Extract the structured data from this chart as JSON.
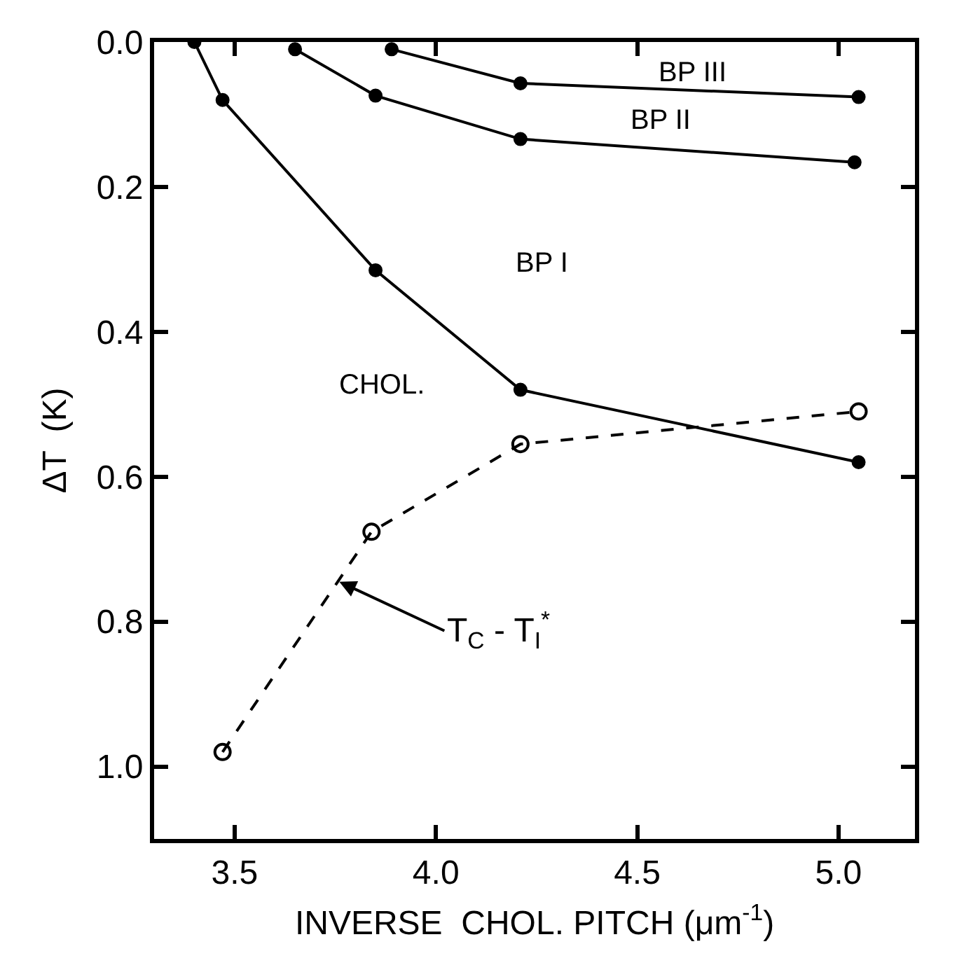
{
  "chart_data": {
    "type": "line",
    "xlabel": "INVERSE  CHOL. PITCH (μm$^{-1}$)",
    "ylabel": "ΔT  (K)",
    "xlim": [
      3.3,
      5.19
    ],
    "ylim": [
      1.1,
      0.0
    ],
    "xticks": [
      {
        "value": 3.5,
        "label": "3.5"
      },
      {
        "value": 4.0,
        "label": "4.0"
      },
      {
        "value": 4.5,
        "label": "4.5"
      },
      {
        "value": 5.0,
        "label": "5.0"
      }
    ],
    "yticks": [
      {
        "value": 0.0,
        "label": "0.0"
      },
      {
        "value": 0.2,
        "label": "0.2"
      },
      {
        "value": 0.4,
        "label": "0.4"
      },
      {
        "value": 0.6,
        "label": "0.6"
      },
      {
        "value": 0.8,
        "label": "0.8"
      },
      {
        "value": 1.0,
        "label": "1.0"
      }
    ],
    "marker": "circle",
    "series": [
      {
        "color": "#000000",
        "line_style": "solid",
        "x": [
          3.4,
          3.47,
          3.85,
          4.21,
          5.05
        ],
        "values": [
          0.0,
          0.08,
          0.315,
          0.48,
          0.58
        ]
      },
      {
        "color": "#000000",
        "line_style": "solid",
        "x": [
          3.65,
          3.85,
          4.21,
          5.04
        ],
        "values": [
          0.01,
          0.074,
          0.134,
          0.166
        ]
      },
      {
        "color": "#000000",
        "line_style": "solid",
        "x": [
          3.89,
          4.21,
          5.05
        ],
        "values": [
          0.01,
          0.057,
          0.076
        ]
      },
      {
        "color": "#000000",
        "line_style": "dashed",
        "x": [
          3.47,
          3.84,
          4.21,
          5.05
        ],
        "values": [
          0.98,
          0.676,
          0.555,
          0.51
        ]
      }
    ],
    "annotations": [
      "BP III",
      "BP II",
      "BP I",
      "CHOL.",
      {
        "text": "T$_{C}$ - T$_{I}$$^{*}$",
        "x": 3.76,
        "y": 0.745
      }
    ]
  }
}
